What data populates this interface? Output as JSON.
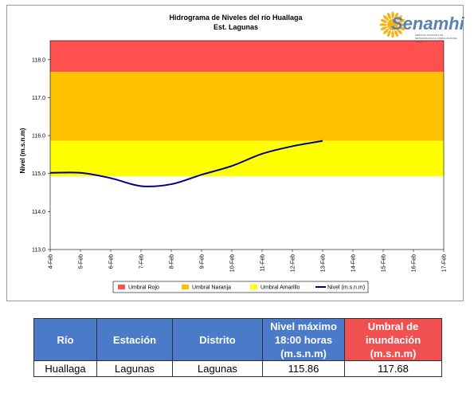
{
  "chart_data": {
    "type": "line",
    "title": "Hidrograma de Niveles del río Huallaga",
    "subtitle": "Est. Lagunas",
    "ylabel": "Nivel (m.s.n.m)",
    "ylim": [
      113.0,
      118.5
    ],
    "yticks": [
      "113.0",
      "114.0",
      "115.0",
      "116.0",
      "117.0",
      "118.0"
    ],
    "categories": [
      "4-Feb",
      "5-Feb",
      "6-Feb",
      "7-Feb",
      "8-Feb",
      "9-Feb",
      "10-Feb",
      "11-Feb",
      "12-Feb",
      "13-Feb",
      "14-Feb",
      "15-Feb",
      "16-Feb",
      "17-Feb"
    ],
    "bands": [
      {
        "name": "Umbral Rojo",
        "from": 117.68,
        "to": 118.5,
        "color": "#ff5050"
      },
      {
        "name": "Umbral Naranja",
        "from": 115.86,
        "to": 117.68,
        "color": "#ffc000"
      },
      {
        "name": "Umbral Amarillo",
        "from": 114.93,
        "to": 115.86,
        "color": "#ffff00"
      }
    ],
    "series": [
      {
        "name": "Nivel (m.s.n.m)",
        "color": "#00008b",
        "values": [
          115.02,
          115.02,
          114.88,
          114.67,
          114.72,
          114.97,
          115.2,
          115.52,
          115.72,
          115.86,
          null,
          null,
          null,
          null
        ]
      }
    ],
    "grid": false,
    "legend_position": "bottom"
  },
  "logo": {
    "text": "Senamhi",
    "subtitle": "SERVICIO NACIONAL DE METEOROLOGÍA E HIDROLOGÍA DEL PERÚ"
  },
  "table": {
    "headers": [
      "Río",
      "Estación",
      "Distrito",
      "Nivel máximo 18:00 horas (m.s.n.m)",
      "Umbral de inundación (m.s.n.m)"
    ],
    "header_lines": [
      [
        "Río"
      ],
      [
        "Estación"
      ],
      [
        "Distrito"
      ],
      [
        "Nivel máximo",
        "18:00 horas",
        "(m.s.n.m)"
      ],
      [
        "Umbral de",
        "inundación",
        "(m.s.n.m)"
      ]
    ],
    "row": [
      "Huallaga",
      "Lagunas",
      "Lagunas",
      "115.86",
      "117.68"
    ],
    "colors": {
      "header_blue": "#4a7ac8",
      "header_red": "#f05050"
    }
  }
}
